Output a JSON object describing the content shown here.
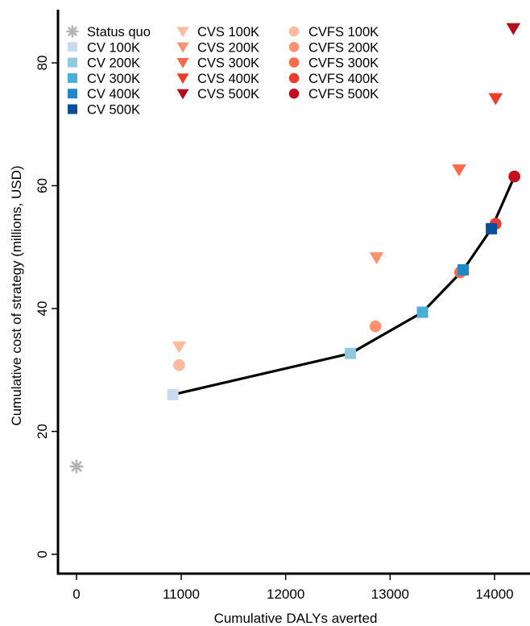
{
  "chart_data": {
    "type": "scatter",
    "title": "",
    "xlabel": "Cumulative DALYs averted",
    "ylabel": "Cumulative cost of strategy (millions, USD)",
    "x_axis_break": {
      "before": 0,
      "after": 10500
    },
    "xlim": [
      10500,
      14300
    ],
    "ylim": [
      0,
      86
    ],
    "xticks": [
      0,
      11000,
      12000,
      13000,
      14000
    ],
    "xtick_labels": [
      "0",
      "11000",
      "12000",
      "13000",
      "14000"
    ],
    "yticks": [
      0,
      20,
      40,
      60,
      80
    ],
    "ytick_labels": [
      "0",
      "20",
      "40",
      "60",
      "80"
    ],
    "grid": false,
    "legend_position": "top-left",
    "series": [
      {
        "name": "Status quo",
        "marker": "asterisk",
        "color": "#b3b3b3",
        "x": 0,
        "y": 14.3
      },
      {
        "name": "CV 100K",
        "marker": "square",
        "color": "#c6dbef",
        "x": 10920,
        "y": 26.0
      },
      {
        "name": "CV 200K",
        "marker": "square",
        "color": "#8ecae0",
        "x": 12620,
        "y": 32.7
      },
      {
        "name": "CV 300K",
        "marker": "square",
        "color": "#4aaed6",
        "x": 13310,
        "y": 39.4
      },
      {
        "name": "CV 400K",
        "marker": "square",
        "color": "#1f88c9",
        "x": 13700,
        "y": 46.3
      },
      {
        "name": "CV 500K",
        "marker": "square",
        "color": "#0b4f9c",
        "x": 13970,
        "y": 53.0
      },
      {
        "name": "CVS 100K",
        "marker": "triangle-down",
        "color": "#fcbba1",
        "x": 10980,
        "y": 33.8
      },
      {
        "name": "CVS 200K",
        "marker": "triangle-down",
        "color": "#fc9272",
        "x": 12870,
        "y": 48.3
      },
      {
        "name": "CVS 300K",
        "marker": "triangle-down",
        "color": "#fb6a4a",
        "x": 13660,
        "y": 62.6
      },
      {
        "name": "CVS 400K",
        "marker": "triangle-down",
        "color": "#ef3b2c",
        "x": 14010,
        "y": 74.2
      },
      {
        "name": "CVS 500K",
        "marker": "triangle-down",
        "color": "#b30f1a",
        "x": 14180,
        "y": 85.6
      },
      {
        "name": "CVFS 100K",
        "marker": "circle",
        "color": "#fcbba1",
        "x": 10980,
        "y": 30.8
      },
      {
        "name": "CVFS 200K",
        "marker": "circle",
        "color": "#fc9272",
        "x": 12860,
        "y": 37.1
      },
      {
        "name": "CVFS 300K",
        "marker": "circle",
        "color": "#fb6a4a",
        "x": 13670,
        "y": 45.9
      },
      {
        "name": "CVFS 400K",
        "marker": "circle",
        "color": "#ef3b2c",
        "x": 14010,
        "y": 53.8
      },
      {
        "name": "CVFS 500K",
        "marker": "circle",
        "color": "#c40f1f",
        "x": 14190,
        "y": 61.5
      }
    ],
    "frontier": {
      "color": "#000000",
      "points": [
        [
          10920,
          26.0
        ],
        [
          12620,
          32.7
        ],
        [
          13310,
          39.4
        ],
        [
          13700,
          46.3
        ],
        [
          13970,
          53.0
        ],
        [
          14190,
          61.5
        ]
      ]
    },
    "legend_columns": [
      [
        "Status quo",
        "CV 100K",
        "CV 200K",
        "CV 300K",
        "CV 400K",
        "CV 500K"
      ],
      [
        "CVS 100K",
        "CVS 200K",
        "CVS 300K",
        "CVS 400K",
        "CVS 500K"
      ],
      [
        "CVFS 100K",
        "CVFS 200K",
        "CVFS 300K",
        "CVFS 400K",
        "CVFS 500K"
      ]
    ]
  }
}
